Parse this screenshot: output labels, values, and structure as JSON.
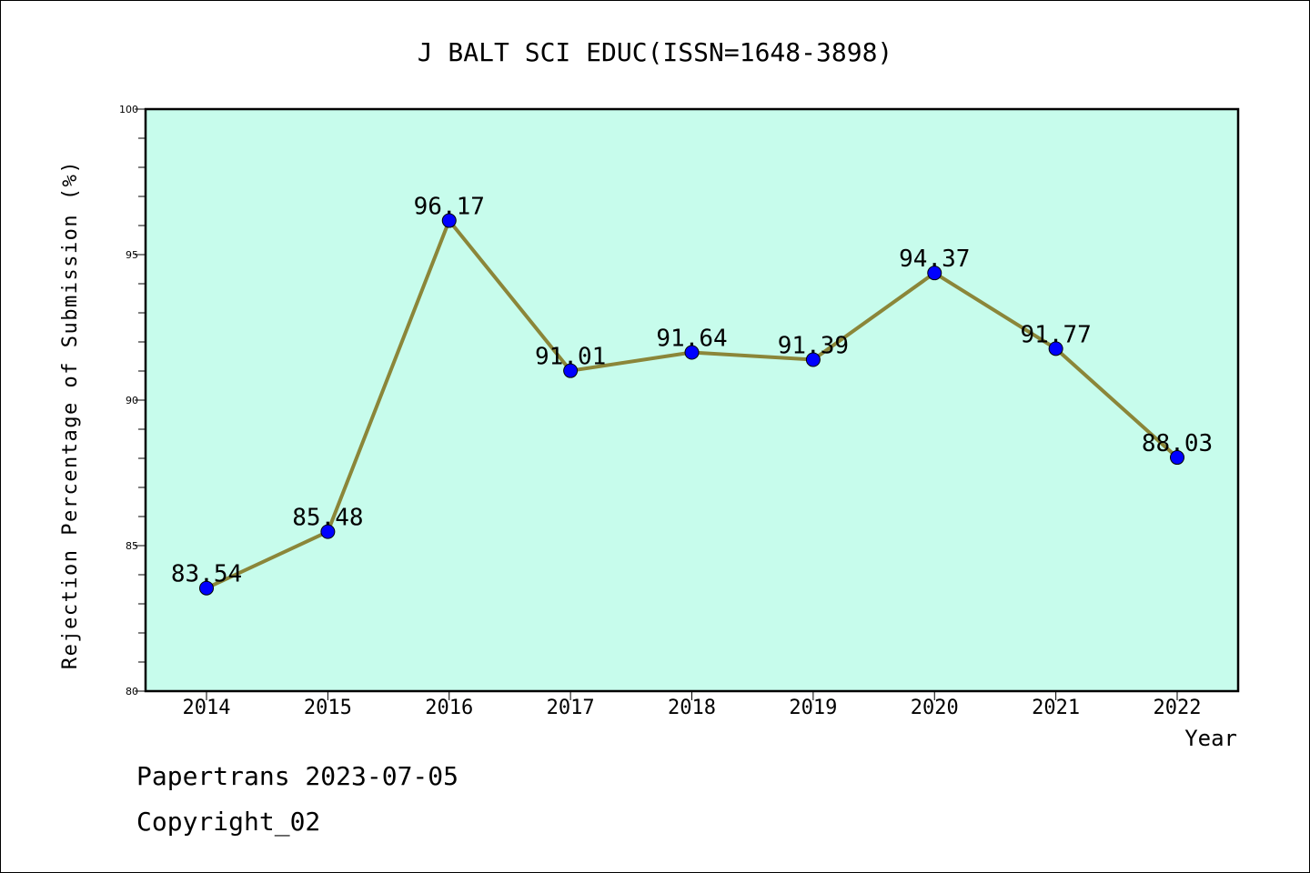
{
  "chart_data": {
    "type": "line",
    "title": "J BALT SCI EDUC(ISSN=1648-3898)",
    "xlabel": "Year",
    "ylabel": "Rejection Percentage of Submission (%)",
    "categories": [
      "2014",
      "2015",
      "2016",
      "2017",
      "2018",
      "2019",
      "2020",
      "2021",
      "2022"
    ],
    "values": [
      83.54,
      85.48,
      96.17,
      91.01,
      91.64,
      91.39,
      94.37,
      91.77,
      88.03
    ],
    "data_labels": [
      "83.54",
      "85.48",
      "96.17",
      "91.01",
      "91.64",
      "91.39",
      "94.37",
      "91.77",
      "88.03"
    ],
    "ylim": [
      80,
      100
    ],
    "y_ticks": [
      "80",
      "85",
      "90",
      "95",
      "100"
    ],
    "grid": false,
    "colors": {
      "plot_background": "#c7fcec",
      "line": "#8b8639",
      "marker": "#0000ff"
    }
  },
  "footer": {
    "line1": "Papertrans 2023-07-05",
    "line2": "Copyright_02"
  }
}
